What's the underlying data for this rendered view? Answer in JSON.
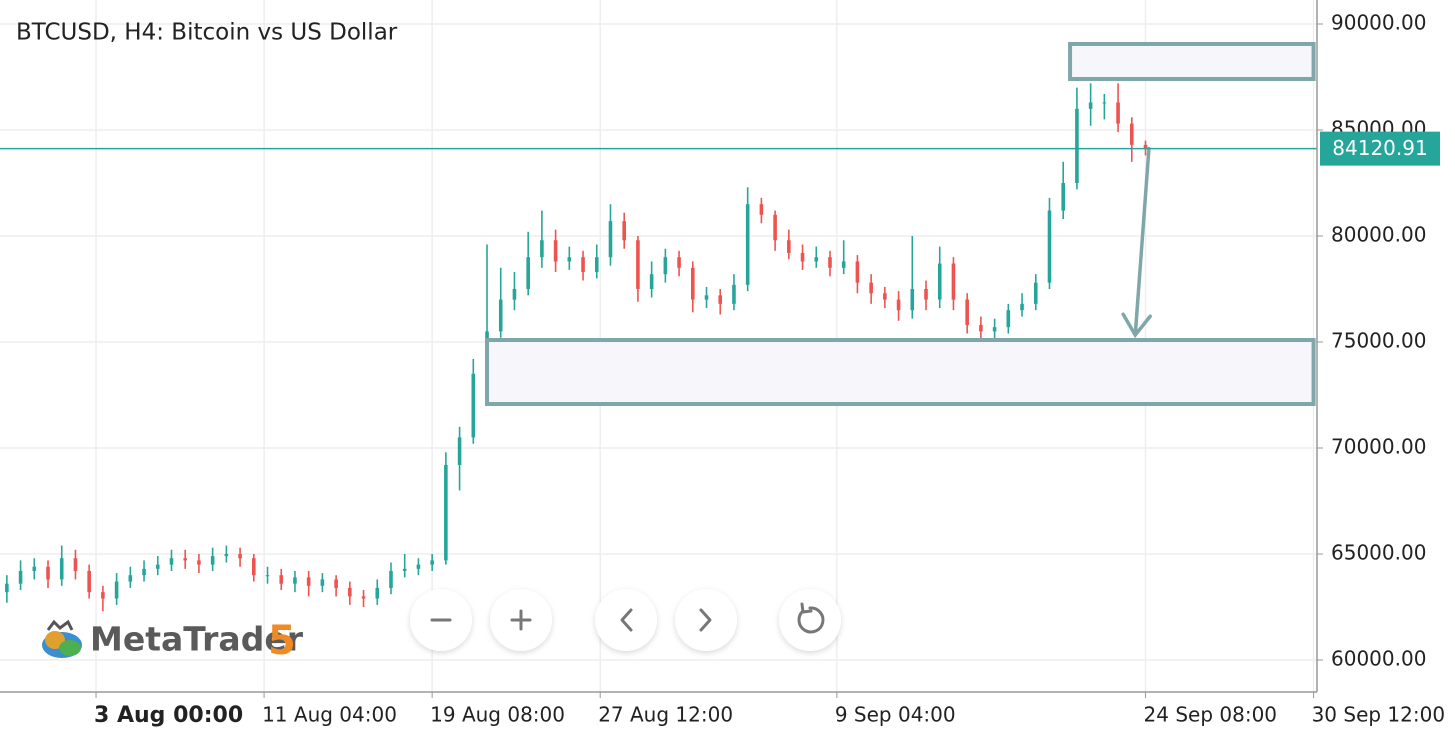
{
  "chart_data": {
    "type": "candlestick",
    "title": "BTCUSD, H4: Bitcoin vs US Dollar",
    "logo": {
      "name": "MetaTrader",
      "version": "5"
    },
    "xlim": [
      0,
      384
    ],
    "ylim": [
      58491,
      91132
    ],
    "yticks": [
      {
        "value": 60000,
        "label": "60000.00"
      },
      {
        "value": 65000,
        "label": "65000.00"
      },
      {
        "value": 70000,
        "label": "70000.00"
      },
      {
        "value": 75000,
        "label": "75000.00"
      },
      {
        "value": 80000,
        "label": "80000.00"
      },
      {
        "value": 85000,
        "label": "85000.00"
      },
      {
        "value": 90000,
        "label": "90000.00"
      }
    ],
    "xticks": [
      {
        "value": 28,
        "label": "3 Aug 00:00"
      },
      {
        "value": 77,
        "label": "11 Aug 04:00"
      },
      {
        "value": 126,
        "label": "19 Aug 08:00"
      },
      {
        "value": 175,
        "label": "27 Aug 12:00"
      },
      {
        "value": 244,
        "label": "9 Sep 04:00"
      },
      {
        "value": 334,
        "label": "24 Sep 08:00"
      },
      {
        "value": 383,
        "label": "30 Sep 12:00"
      }
    ],
    "grid": true,
    "up_color": "#26a69a",
    "down_color": "#ef5350",
    "current_price": 84120.91,
    "price_line_color": "#26a69a",
    "x": [
      2,
      6,
      10,
      14,
      18,
      22,
      26,
      30,
      34,
      38,
      42,
      46,
      50,
      54,
      58,
      62,
      66,
      70,
      74,
      78,
      82,
      86,
      90,
      94,
      98,
      102,
      106,
      110,
      114,
      118,
      122,
      126,
      130,
      134,
      138,
      142,
      146,
      150,
      154,
      158,
      162,
      166,
      170,
      174,
      178,
      182,
      186,
      190,
      194,
      198,
      202,
      206,
      210,
      214,
      218,
      222,
      226,
      230,
      234,
      238,
      242,
      246,
      250,
      254,
      258,
      262,
      266,
      270,
      274,
      278,
      282,
      286,
      290,
      294,
      298,
      302,
      306,
      310,
      314,
      318,
      322,
      326,
      330,
      334
    ],
    "open": [
      63200,
      63600,
      64200,
      64400,
      63800,
      64800,
      64200,
      63200,
      62900,
      63700,
      64000,
      64300,
      64500,
      64800,
      64700,
      64500,
      64900,
      65000,
      64800,
      64000,
      64000,
      63600,
      63900,
      63500,
      63800,
      63400,
      63000,
      62900,
      63400,
      64200,
      64300,
      64500,
      64700,
      69200,
      70500,
      73500,
      75500,
      77000,
      77500,
      79000,
      79800,
      78800,
      79000,
      78300,
      79000,
      80700,
      79800,
      77500,
      78200,
      79000,
      78500,
      77000,
      77200,
      76800,
      77700,
      81500,
      81000,
      79800,
      79200,
      78800,
      79000,
      78500,
      78800,
      77800,
      77300,
      77000,
      76500,
      77500,
      77000,
      78700,
      77000,
      75800,
      75500,
      75700,
      76500,
      76800,
      77800,
      81200,
      82500,
      86000,
      86300,
      86300,
      85300,
      84300
    ],
    "high": [
      64000,
      64700,
      64800,
      64700,
      65400,
      65200,
      64500,
      63500,
      64100,
      64400,
      64700,
      64900,
      65200,
      65200,
      65000,
      65300,
      65400,
      65300,
      65000,
      64400,
      64300,
      64200,
      64200,
      64100,
      64000,
      63700,
      63300,
      63800,
      64600,
      65000,
      64800,
      65000,
      69800,
      71000,
      74200,
      79600,
      78500,
      78300,
      80200,
      81200,
      80300,
      79500,
      79300,
      79600,
      81500,
      81100,
      80000,
      78800,
      79400,
      79300,
      78800,
      77600,
      77500,
      78200,
      82300,
      81800,
      81200,
      80300,
      79600,
      79500,
      79300,
      79800,
      79100,
      78200,
      77600,
      77400,
      80000,
      77900,
      79500,
      79000,
      77300,
      76200,
      76100,
      76800,
      77300,
      78200,
      81800,
      83500,
      87000,
      87200,
      86700,
      87200,
      85600,
      84500
    ],
    "low": [
      62700,
      63300,
      63800,
      63400,
      63500,
      63800,
      62900,
      62300,
      62600,
      63400,
      63700,
      64000,
      64200,
      64300,
      64100,
      64200,
      64600,
      64400,
      63700,
      63600,
      63300,
      63200,
      63000,
      63200,
      63000,
      62600,
      62500,
      62600,
      63100,
      63900,
      64000,
      64200,
      64500,
      68000,
      70200,
      73200,
      75200,
      76500,
      77200,
      78500,
      78300,
      78400,
      77900,
      78000,
      78600,
      79400,
      76900,
      77100,
      77800,
      78100,
      76400,
      76600,
      76300,
      76500,
      77400,
      80600,
      79300,
      78900,
      78400,
      78500,
      78100,
      78200,
      77300,
      76800,
      76600,
      76000,
      76100,
      76500,
      76600,
      76500,
      75400,
      74900,
      75100,
      75400,
      76200,
      76500,
      77500,
      80800,
      82200,
      85200,
      85500,
      84900,
      83500,
      83800
    ],
    "close": [
      63600,
      64200,
      64400,
      63800,
      64800,
      64200,
      63200,
      62900,
      63700,
      64000,
      64300,
      64500,
      64800,
      64700,
      64500,
      64900,
      65000,
      64800,
      64000,
      64000,
      63600,
      63900,
      63500,
      63800,
      63400,
      63000,
      62900,
      63400,
      64200,
      64300,
      64500,
      64700,
      69200,
      70500,
      73500,
      75500,
      77000,
      77500,
      79000,
      79800,
      78800,
      79000,
      78300,
      79000,
      80700,
      79800,
      77500,
      78200,
      79000,
      78500,
      77000,
      77200,
      76800,
      77700,
      81500,
      81000,
      79800,
      79200,
      78800,
      79000,
      78500,
      78800,
      77800,
      77300,
      77000,
      76500,
      77500,
      77000,
      78700,
      77000,
      75800,
      75500,
      75700,
      76500,
      76800,
      77800,
      81200,
      82500,
      86000,
      86300,
      86300,
      85300,
      84300,
      84120.91
    ],
    "zones": [
      {
        "x": [
          312,
          383
        ],
        "y": [
          87406,
          89057
        ]
      },
      {
        "x": [
          142,
          383
        ],
        "y": [
          72075,
          75094
        ]
      }
    ],
    "arrow": {
      "x": [
        335,
        331
      ],
      "y": [
        84121,
        75330
      ]
    }
  }
}
